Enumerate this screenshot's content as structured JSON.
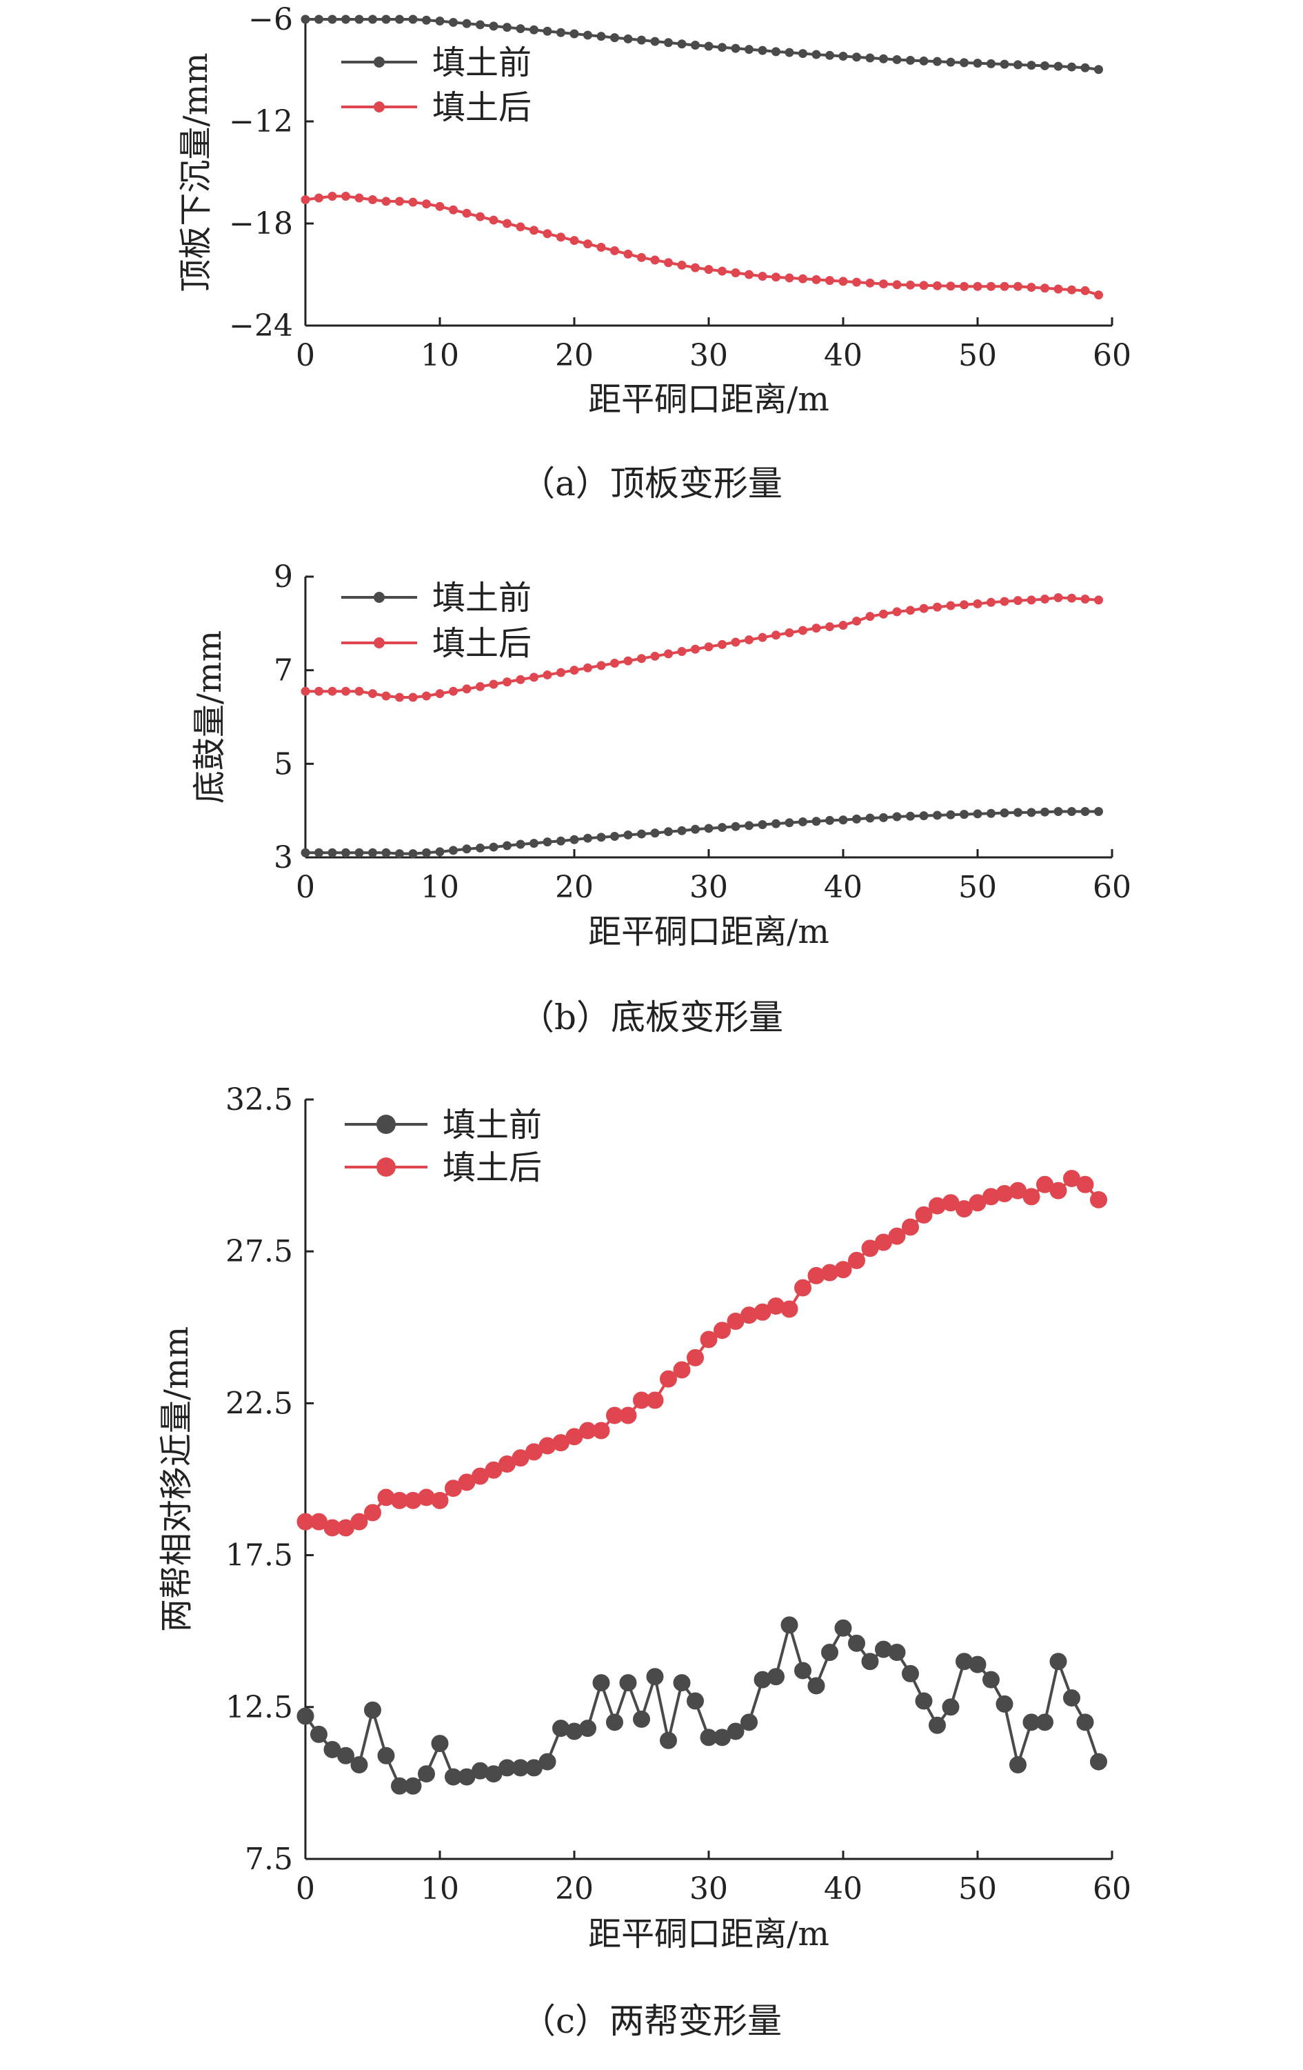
{
  "series_colors": {
    "before": "#4a4a4a",
    "after": "#e0464f"
  },
  "chart_data": [
    {
      "type": "line",
      "caption": "（a）顶板变形量",
      "xlabel": "距平硐口距离/m",
      "ylabel": "顶板下沉量/mm",
      "xlim": [
        0,
        60
      ],
      "ylim": [
        -24,
        -6
      ],
      "xticks": [
        0,
        10,
        20,
        30,
        40,
        50,
        60
      ],
      "yticks": [
        -6,
        -12,
        -18,
        -24
      ],
      "grid": false,
      "legend_position": "top-left",
      "x": [
        0,
        1,
        2,
        3,
        4,
        5,
        6,
        7,
        8,
        9,
        10,
        11,
        12,
        13,
        14,
        15,
        16,
        17,
        18,
        19,
        20,
        21,
        22,
        23,
        24,
        25,
        26,
        27,
        28,
        29,
        30,
        31,
        32,
        33,
        34,
        35,
        36,
        37,
        38,
        39,
        40,
        41,
        42,
        43,
        44,
        45,
        46,
        47,
        48,
        49,
        50,
        51,
        52,
        53,
        54,
        55,
        56,
        57,
        58,
        59
      ],
      "series": [
        {
          "name": "填土前",
          "values": [
            -6.0,
            -6.0,
            -6.0,
            -6.0,
            -6.0,
            -6.0,
            -6.0,
            -6.0,
            -6.0,
            -6.05,
            -6.1,
            -6.18,
            -6.25,
            -6.32,
            -6.4,
            -6.47,
            -6.55,
            -6.62,
            -6.7,
            -6.78,
            -6.85,
            -6.93,
            -7.0,
            -7.08,
            -7.15,
            -7.22,
            -7.3,
            -7.37,
            -7.45,
            -7.52,
            -7.58,
            -7.65,
            -7.71,
            -7.77,
            -7.83,
            -7.9,
            -7.95,
            -8.01,
            -8.07,
            -8.12,
            -8.17,
            -8.22,
            -8.27,
            -8.32,
            -8.37,
            -8.41,
            -8.45,
            -8.48,
            -8.52,
            -8.55,
            -8.58,
            -8.61,
            -8.64,
            -8.67,
            -8.7,
            -8.73,
            -8.76,
            -8.8,
            -8.85,
            -8.95
          ]
        },
        {
          "name": "填土后",
          "values": [
            -16.6,
            -16.5,
            -16.4,
            -16.4,
            -16.5,
            -16.6,
            -16.7,
            -16.7,
            -16.75,
            -16.85,
            -17.0,
            -17.2,
            -17.4,
            -17.6,
            -17.8,
            -18.0,
            -18.2,
            -18.4,
            -18.6,
            -18.8,
            -19.0,
            -19.2,
            -19.4,
            -19.6,
            -19.8,
            -20.0,
            -20.15,
            -20.3,
            -20.45,
            -20.6,
            -20.7,
            -20.8,
            -20.9,
            -21.0,
            -21.1,
            -21.15,
            -21.2,
            -21.25,
            -21.3,
            -21.35,
            -21.4,
            -21.45,
            -21.5,
            -21.55,
            -21.6,
            -21.62,
            -21.64,
            -21.66,
            -21.68,
            -21.7,
            -21.7,
            -21.7,
            -21.7,
            -21.7,
            -21.75,
            -21.8,
            -21.85,
            -21.9,
            -21.95,
            -22.2
          ]
        }
      ]
    },
    {
      "type": "line",
      "caption": "（b）底板变形量",
      "xlabel": "距平硐口距离/m",
      "ylabel": "底鼓量/mm",
      "xlim": [
        0,
        60
      ],
      "ylim": [
        3,
        9
      ],
      "xticks": [
        0,
        10,
        20,
        30,
        40,
        50,
        60
      ],
      "yticks": [
        3,
        5,
        7,
        9
      ],
      "grid": false,
      "legend_position": "top-left",
      "x": [
        0,
        1,
        2,
        3,
        4,
        5,
        6,
        7,
        8,
        9,
        10,
        11,
        12,
        13,
        14,
        15,
        16,
        17,
        18,
        19,
        20,
        21,
        22,
        23,
        24,
        25,
        26,
        27,
        28,
        29,
        30,
        31,
        32,
        33,
        34,
        35,
        36,
        37,
        38,
        39,
        40,
        41,
        42,
        43,
        44,
        45,
        46,
        47,
        48,
        49,
        50,
        51,
        52,
        53,
        54,
        55,
        56,
        57,
        58,
        59
      ],
      "series": [
        {
          "name": "填土前",
          "values": [
            3.1,
            3.1,
            3.1,
            3.1,
            3.1,
            3.1,
            3.1,
            3.08,
            3.08,
            3.1,
            3.12,
            3.15,
            3.18,
            3.2,
            3.22,
            3.25,
            3.28,
            3.3,
            3.33,
            3.35,
            3.38,
            3.41,
            3.43,
            3.45,
            3.48,
            3.5,
            3.52,
            3.55,
            3.57,
            3.6,
            3.62,
            3.64,
            3.66,
            3.68,
            3.7,
            3.72,
            3.74,
            3.76,
            3.77,
            3.79,
            3.8,
            3.82,
            3.84,
            3.85,
            3.87,
            3.88,
            3.89,
            3.9,
            3.91,
            3.92,
            3.93,
            3.94,
            3.95,
            3.96,
            3.96,
            3.97,
            3.98,
            3.98,
            3.98,
            3.98
          ]
        },
        {
          "name": "填土后",
          "values": [
            6.55,
            6.55,
            6.55,
            6.55,
            6.55,
            6.5,
            6.45,
            6.42,
            6.42,
            6.45,
            6.5,
            6.55,
            6.6,
            6.65,
            6.7,
            6.75,
            6.8,
            6.85,
            6.9,
            6.95,
            7.0,
            7.05,
            7.1,
            7.15,
            7.2,
            7.25,
            7.3,
            7.35,
            7.4,
            7.45,
            7.5,
            7.55,
            7.6,
            7.65,
            7.7,
            7.75,
            7.8,
            7.85,
            7.9,
            7.93,
            7.96,
            8.05,
            8.15,
            8.2,
            8.25,
            8.28,
            8.32,
            8.35,
            8.38,
            8.4,
            8.42,
            8.45,
            8.47,
            8.49,
            8.5,
            8.52,
            8.55,
            8.54,
            8.52,
            8.5
          ]
        }
      ]
    },
    {
      "type": "line",
      "caption": "（c）两帮变形量",
      "xlabel": "距平硐口距离/m",
      "ylabel": "两帮相对移近量/mm",
      "xlim": [
        0,
        60
      ],
      "ylim": [
        7.5,
        32.5
      ],
      "xticks": [
        0,
        10,
        20,
        30,
        40,
        50,
        60
      ],
      "yticks": [
        7.5,
        12.5,
        17.5,
        22.5,
        27.5,
        32.5
      ],
      "grid": false,
      "legend_position": "top-left",
      "x": [
        0,
        1,
        2,
        3,
        4,
        5,
        6,
        7,
        8,
        9,
        10,
        11,
        12,
        13,
        14,
        15,
        16,
        17,
        18,
        19,
        20,
        21,
        22,
        23,
        24,
        25,
        26,
        27,
        28,
        29,
        30,
        31,
        32,
        33,
        34,
        35,
        36,
        37,
        38,
        39,
        40,
        41,
        42,
        43,
        44,
        45,
        46,
        47,
        48,
        49,
        50,
        51,
        52,
        53,
        54,
        55,
        56,
        57,
        58,
        59
      ],
      "series": [
        {
          "name": "填土前",
          "values": [
            12.2,
            11.6,
            11.1,
            10.9,
            10.6,
            12.4,
            10.9,
            9.9,
            9.9,
            10.3,
            11.3,
            10.2,
            10.2,
            10.4,
            10.3,
            10.5,
            10.5,
            10.5,
            10.7,
            11.8,
            11.7,
            11.8,
            13.3,
            12.0,
            13.3,
            12.1,
            13.5,
            11.4,
            13.3,
            12.7,
            11.5,
            11.5,
            11.7,
            12.0,
            13.4,
            13.5,
            15.2,
            13.7,
            13.2,
            14.3,
            15.1,
            14.6,
            14.0,
            14.4,
            14.3,
            13.6,
            12.7,
            11.9,
            12.5,
            14.0,
            13.9,
            13.4,
            12.6,
            10.6,
            12.0,
            12.0,
            14.0,
            12.8,
            12.0,
            10.7
          ]
        },
        {
          "name": "填土后",
          "values": [
            18.6,
            18.6,
            18.4,
            18.4,
            18.6,
            18.9,
            19.4,
            19.3,
            19.3,
            19.4,
            19.3,
            19.7,
            19.9,
            20.1,
            20.3,
            20.5,
            20.7,
            20.9,
            21.1,
            21.2,
            21.4,
            21.6,
            21.6,
            22.1,
            22.1,
            22.6,
            22.6,
            23.3,
            23.6,
            24.0,
            24.6,
            24.9,
            25.2,
            25.4,
            25.5,
            25.7,
            25.6,
            26.3,
            26.7,
            26.8,
            26.9,
            27.2,
            27.6,
            27.8,
            28.0,
            28.3,
            28.7,
            29.0,
            29.1,
            28.9,
            29.1,
            29.3,
            29.4,
            29.5,
            29.3,
            29.7,
            29.5,
            29.9,
            29.7,
            29.2
          ]
        }
      ]
    }
  ]
}
